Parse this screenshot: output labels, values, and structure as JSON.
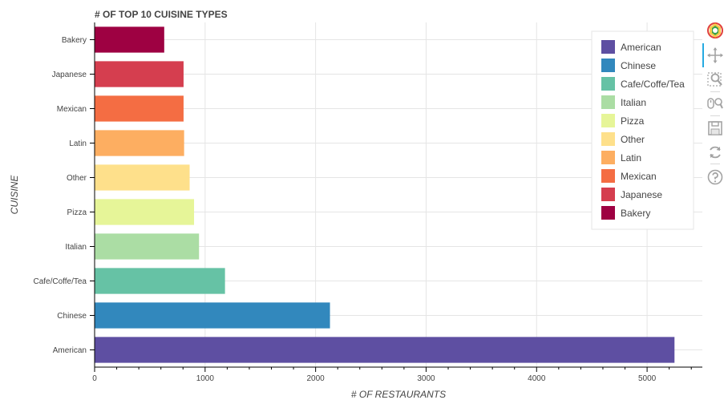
{
  "chart_data": {
    "type": "bar",
    "orientation": "horizontal",
    "title": "# OF TOP 10 CUISINE TYPES",
    "xlabel": "# OF RESTAURANTS",
    "ylabel": "CUISINE",
    "categories": [
      "American",
      "Chinese",
      "Cafe/Coffe/Tea",
      "Italian",
      "Pizza",
      "Other",
      "Latin",
      "Mexican",
      "Japanese",
      "Bakery"
    ],
    "values": [
      5248,
      2130,
      1180,
      945,
      900,
      860,
      810,
      805,
      805,
      630
    ],
    "colors": [
      "#5e4fa2",
      "#3288bd",
      "#66c2a5",
      "#abdda4",
      "#e6f598",
      "#fee08b",
      "#fdae61",
      "#f46d43",
      "#d53e4f",
      "#9e0142"
    ],
    "xlim": [
      0,
      5500
    ],
    "xticks": [
      0,
      1000,
      2000,
      3000,
      4000,
      5000
    ],
    "grid": true,
    "legend": {
      "position": "top-right",
      "entries": [
        "American",
        "Chinese",
        "Cafe/Coffe/Tea",
        "Italian",
        "Pizza",
        "Other",
        "Latin",
        "Mexican",
        "Japanese",
        "Bakery"
      ]
    }
  },
  "toolbar": {
    "tools": [
      "bokeh-logo-icon",
      "pan-icon",
      "box-zoom-icon",
      "wheel-zoom-icon",
      "save-icon",
      "reset-icon",
      "help-icon"
    ]
  }
}
